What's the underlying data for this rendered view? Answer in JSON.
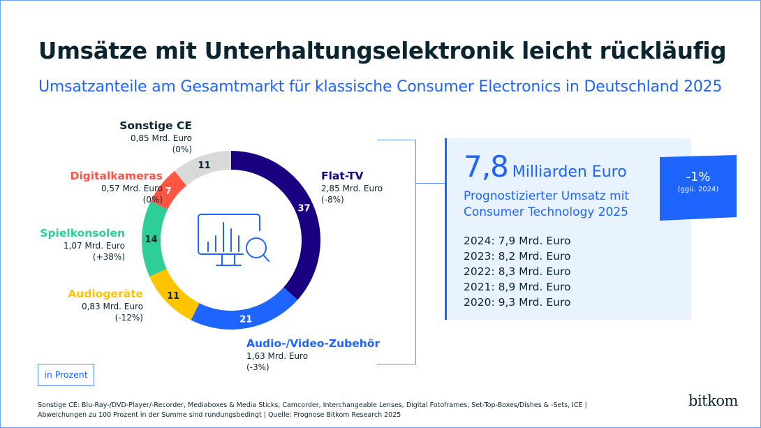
{
  "page": {
    "title": "Umsätze mit Unterhaltungselektronik leicht rückläufig",
    "subtitle": "Umsatzanteile am Gesamtmarkt für klassische Consumer Electronics in Deutschland 2025",
    "unit_label": "in Prozent",
    "footnote_line1": "Sonstige CE: Blu-Ray-/DVD-Player/-Recorder, Mediaboxes & Media Sticks, Camcorder, Interchangeable Lenses, Digital Fotoframes, Set-Top-Boxes/Dishes & -Sets, ICE |",
    "footnote_line2": "Abweichungen zu 100 Prozent in der Summe sind rundungsbedingt | Quelle: Prognose Bitkom Research 2025",
    "logo": "bitkom",
    "center_icon": "monitor-chart-search-icon"
  },
  "summary": {
    "value": "7,8",
    "unit": "Milliarden Euro",
    "description_line1": "Prognostizierter Umsatz mit",
    "description_line2": "Consumer Technology 2025",
    "change": "-1%",
    "change_basis": "(ggü. 2024)",
    "history": [
      {
        "label": "2024: 7,9 Mrd. Euro"
      },
      {
        "label": "2023: 8,2 Mrd. Euro"
      },
      {
        "label": "2022: 8,3 Mrd. Euro"
      },
      {
        "label": "2021: 8,9 Mrd. Euro"
      },
      {
        "label": "2020: 9,3 Mrd. Euro"
      }
    ],
    "accent_color": "#1e64ff",
    "box_color": "#e8f3ff"
  },
  "chart_data": {
    "type": "pie",
    "variant": "donut",
    "title": "Umsatzanteile am Gesamtmarkt für klassische Consumer Electronics in Deutschland 2025",
    "unit": "in Prozent",
    "start": "top, clockwise",
    "categories": [
      "Flat-TV",
      "Audio-/Video-Zubehör",
      "Audiogeräte",
      "Spielkonsolen",
      "Digitalkameras",
      "Sonstige CE"
    ],
    "values": [
      37,
      21,
      11,
      14,
      7,
      11
    ],
    "revenue": [
      "2,85 Mrd. Euro",
      "1,63 Mrd. Euro",
      "0,83 Mrd. Euro",
      "1,07 Mrd. Euro",
      "0,57 Mrd. Euro",
      "0,85 Mrd. Euro"
    ],
    "change": [
      "(-8%)",
      "(-3%)",
      "(-12%)",
      "(+38%)",
      "(0%)",
      "(0%)"
    ],
    "colors": [
      "#1a0080",
      "#1e64ff",
      "#ffc400",
      "#2ecf96",
      "#ff5543",
      "#d9d9d9"
    ],
    "label_text_colors": [
      "#ffffff",
      "#ffffff",
      "#0a2530",
      "#0a2530",
      "#ffffff",
      "#0a2530"
    ],
    "name_colors": [
      "#1a0080",
      "#1e64ff",
      "#ffc400",
      "#2ecf96",
      "#ff5543",
      "#0a2530"
    ]
  }
}
